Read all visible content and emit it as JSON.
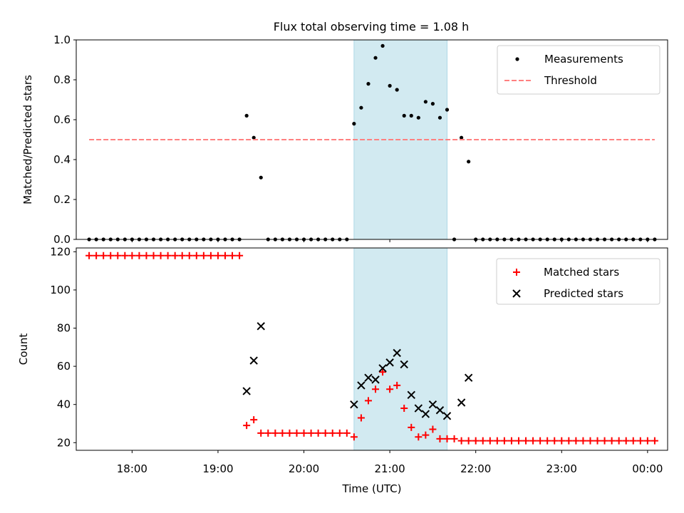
{
  "title": "Flux total observing time = 1.08 h",
  "colors": {
    "window": "#add8e6",
    "threshold": "#ff8080",
    "matched": "#ff0000",
    "predicted": "#000000",
    "measurement": "#000000"
  },
  "chart_data": [
    {
      "type": "scatter",
      "ylabel": "Matched/Predicted stars",
      "ylim": [
        0,
        1.0
      ],
      "yticks": [
        0.0,
        0.2,
        0.4,
        0.6,
        0.8,
        1.0
      ],
      "ytick_labels": [
        "0.0",
        "0.2",
        "0.4",
        "0.6",
        "0.8",
        "1.0"
      ],
      "xlim": [
        "17:21",
        "00:14"
      ],
      "shaded_window": [
        "20:35",
        "21:40"
      ],
      "legend": "top-right",
      "series": [
        {
          "name": "Measurements",
          "marker": "dot",
          "points": [
            [
              "17:30",
              0
            ],
            [
              "17:35",
              0
            ],
            [
              "17:40",
              0
            ],
            [
              "17:45",
              0
            ],
            [
              "17:50",
              0
            ],
            [
              "17:55",
              0
            ],
            [
              "18:00",
              0
            ],
            [
              "18:05",
              0
            ],
            [
              "18:10",
              0
            ],
            [
              "18:15",
              0
            ],
            [
              "18:20",
              0
            ],
            [
              "18:25",
              0
            ],
            [
              "18:30",
              0
            ],
            [
              "18:35",
              0
            ],
            [
              "18:40",
              0
            ],
            [
              "18:45",
              0
            ],
            [
              "18:50",
              0
            ],
            [
              "18:55",
              0
            ],
            [
              "19:00",
              0
            ],
            [
              "19:05",
              0
            ],
            [
              "19:10",
              0
            ],
            [
              "19:15",
              0
            ],
            [
              "19:20",
              0.62
            ],
            [
              "19:25",
              0.51
            ],
            [
              "19:30",
              0.31
            ],
            [
              "19:35",
              0
            ],
            [
              "19:40",
              0
            ],
            [
              "19:45",
              0
            ],
            [
              "19:50",
              0
            ],
            [
              "19:55",
              0
            ],
            [
              "20:00",
              0
            ],
            [
              "20:05",
              0
            ],
            [
              "20:10",
              0
            ],
            [
              "20:15",
              0
            ],
            [
              "20:20",
              0
            ],
            [
              "20:25",
              0
            ],
            [
              "20:30",
              0
            ],
            [
              "20:35",
              0.58
            ],
            [
              "20:40",
              0.66
            ],
            [
              "20:45",
              0.78
            ],
            [
              "20:50",
              0.91
            ],
            [
              "20:55",
              0.97
            ],
            [
              "21:00",
              0.77
            ],
            [
              "21:05",
              0.75
            ],
            [
              "21:10",
              0.62
            ],
            [
              "21:15",
              0.62
            ],
            [
              "21:20",
              0.61
            ],
            [
              "21:25",
              0.69
            ],
            [
              "21:30",
              0.68
            ],
            [
              "21:35",
              0.61
            ],
            [
              "21:40",
              0.65
            ],
            [
              "21:45",
              0
            ],
            [
              "21:50",
              0.51
            ],
            [
              "21:55",
              0.39
            ],
            [
              "22:00",
              0
            ],
            [
              "22:05",
              0
            ],
            [
              "22:10",
              0
            ],
            [
              "22:15",
              0
            ],
            [
              "22:20",
              0
            ],
            [
              "22:25",
              0
            ],
            [
              "22:30",
              0
            ],
            [
              "22:35",
              0
            ],
            [
              "22:40",
              0
            ],
            [
              "22:45",
              0
            ],
            [
              "22:50",
              0
            ],
            [
              "22:55",
              0
            ],
            [
              "23:00",
              0
            ],
            [
              "23:05",
              0
            ],
            [
              "23:10",
              0
            ],
            [
              "23:15",
              0
            ],
            [
              "23:20",
              0
            ],
            [
              "23:25",
              0
            ],
            [
              "23:30",
              0
            ],
            [
              "23:35",
              0
            ],
            [
              "23:40",
              0
            ],
            [
              "23:45",
              0
            ],
            [
              "23:50",
              0
            ],
            [
              "23:55",
              0
            ],
            [
              "00:00",
              0
            ],
            [
              "00:05",
              0
            ]
          ]
        },
        {
          "name": "Threshold",
          "line": "dashed",
          "points": [
            [
              "17:30",
              0.5
            ],
            [
              "00:05",
              0.5
            ]
          ]
        }
      ]
    },
    {
      "type": "scatter",
      "xlabel": "Time (UTC)",
      "ylabel": "Count",
      "ylim": [
        16,
        122
      ],
      "yticks": [
        20,
        40,
        60,
        80,
        100,
        120
      ],
      "ytick_labels": [
        "20",
        "40",
        "60",
        "80",
        "100",
        "120"
      ],
      "xlim": [
        "17:21",
        "00:14"
      ],
      "xticks": [
        "18:00",
        "19:00",
        "20:00",
        "21:00",
        "22:00",
        "23:00",
        "00:00"
      ],
      "xtick_labels": [
        "18:00",
        "19:00",
        "20:00",
        "21:00",
        "22:00",
        "23:00",
        "00:00"
      ],
      "shaded_window": [
        "20:35",
        "21:40"
      ],
      "legend": "top-right",
      "series": [
        {
          "name": "Matched stars",
          "marker": "plus",
          "points": [
            [
              "17:30",
              118
            ],
            [
              "17:35",
              118
            ],
            [
              "17:40",
              118
            ],
            [
              "17:45",
              118
            ],
            [
              "17:50",
              118
            ],
            [
              "17:55",
              118
            ],
            [
              "18:00",
              118
            ],
            [
              "18:05",
              118
            ],
            [
              "18:10",
              118
            ],
            [
              "18:15",
              118
            ],
            [
              "18:20",
              118
            ],
            [
              "18:25",
              118
            ],
            [
              "18:30",
              118
            ],
            [
              "18:35",
              118
            ],
            [
              "18:40",
              118
            ],
            [
              "18:45",
              118
            ],
            [
              "18:50",
              118
            ],
            [
              "18:55",
              118
            ],
            [
              "19:00",
              118
            ],
            [
              "19:05",
              118
            ],
            [
              "19:10",
              118
            ],
            [
              "19:15",
              118
            ],
            [
              "19:20",
              29
            ],
            [
              "19:25",
              32
            ],
            [
              "19:30",
              25
            ],
            [
              "19:35",
              25
            ],
            [
              "19:40",
              25
            ],
            [
              "19:45",
              25
            ],
            [
              "19:50",
              25
            ],
            [
              "19:55",
              25
            ],
            [
              "20:00",
              25
            ],
            [
              "20:05",
              25
            ],
            [
              "20:10",
              25
            ],
            [
              "20:15",
              25
            ],
            [
              "20:20",
              25
            ],
            [
              "20:25",
              25
            ],
            [
              "20:30",
              25
            ],
            [
              "20:35",
              23
            ],
            [
              "20:40",
              33
            ],
            [
              "20:45",
              42
            ],
            [
              "20:50",
              48
            ],
            [
              "20:55",
              57
            ],
            [
              "21:00",
              48
            ],
            [
              "21:05",
              50
            ],
            [
              "21:10",
              38
            ],
            [
              "21:15",
              28
            ],
            [
              "21:20",
              23
            ],
            [
              "21:25",
              24
            ],
            [
              "21:30",
              27
            ],
            [
              "21:35",
              22
            ],
            [
              "21:40",
              22
            ],
            [
              "21:45",
              22
            ],
            [
              "21:50",
              21
            ],
            [
              "21:55",
              21
            ],
            [
              "22:00",
              21
            ],
            [
              "22:05",
              21
            ],
            [
              "22:10",
              21
            ],
            [
              "22:15",
              21
            ],
            [
              "22:20",
              21
            ],
            [
              "22:25",
              21
            ],
            [
              "22:30",
              21
            ],
            [
              "22:35",
              21
            ],
            [
              "22:40",
              21
            ],
            [
              "22:45",
              21
            ],
            [
              "22:50",
              21
            ],
            [
              "22:55",
              21
            ],
            [
              "23:00",
              21
            ],
            [
              "23:05",
              21
            ],
            [
              "23:10",
              21
            ],
            [
              "23:15",
              21
            ],
            [
              "23:20",
              21
            ],
            [
              "23:25",
              21
            ],
            [
              "23:30",
              21
            ],
            [
              "23:35",
              21
            ],
            [
              "23:40",
              21
            ],
            [
              "23:45",
              21
            ],
            [
              "23:50",
              21
            ],
            [
              "23:55",
              21
            ],
            [
              "00:00",
              21
            ],
            [
              "00:05",
              21
            ]
          ]
        },
        {
          "name": "Predicted stars",
          "marker": "x",
          "points": [
            [
              "19:20",
              47
            ],
            [
              "19:25",
              63
            ],
            [
              "19:30",
              81
            ],
            [
              "20:35",
              40
            ],
            [
              "20:40",
              50
            ],
            [
              "20:45",
              54
            ],
            [
              "20:50",
              53
            ],
            [
              "20:55",
              59
            ],
            [
              "21:00",
              62
            ],
            [
              "21:05",
              67
            ],
            [
              "21:10",
              61
            ],
            [
              "21:15",
              45
            ],
            [
              "21:20",
              38
            ],
            [
              "21:25",
              35
            ],
            [
              "21:30",
              40
            ],
            [
              "21:35",
              37
            ],
            [
              "21:40",
              34
            ],
            [
              "21:50",
              41
            ],
            [
              "21:55",
              54
            ]
          ]
        }
      ]
    }
  ]
}
